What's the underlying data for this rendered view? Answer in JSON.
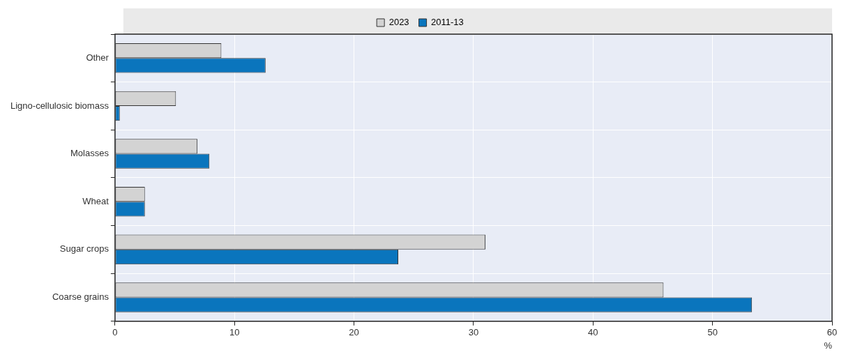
{
  "chart_data": {
    "type": "bar",
    "orientation": "horizontal",
    "xlabel": "%",
    "categories": [
      "Other",
      "Ligno-cellulosic biomass",
      "Molasses",
      "Wheat",
      "Sugar crops",
      "Coarse grains"
    ],
    "series": [
      {
        "name": "2023",
        "color": "#d3d3d3",
        "values": [
          8.9,
          5.1,
          6.9,
          2.5,
          31.0,
          45.9
        ]
      },
      {
        "name": "2011-13",
        "color": "#0a75bd",
        "values": [
          12.6,
          0.4,
          7.9,
          2.5,
          23.7,
          53.3
        ]
      }
    ],
    "xlim": [
      0,
      60
    ],
    "xticks": [
      0,
      10,
      20,
      30,
      40,
      50,
      60
    ],
    "grid": true,
    "legend": "top"
  }
}
